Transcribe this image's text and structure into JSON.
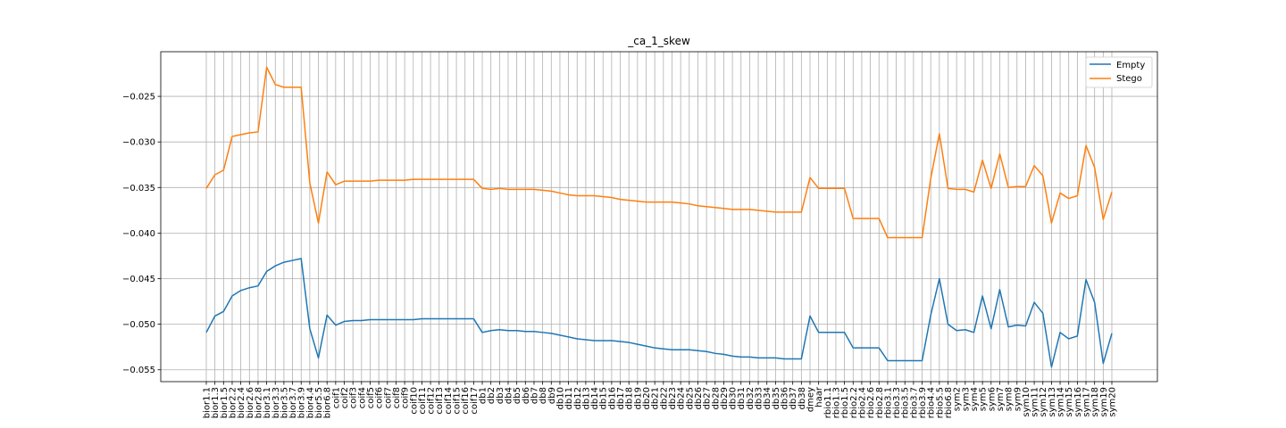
{
  "chart_data": {
    "type": "line",
    "title": "_ca_1_skew",
    "xlabel": "",
    "ylabel": "",
    "ylim": [
      -0.0563,
      -0.0201
    ],
    "grid": true,
    "legend_position": "top-right",
    "yticks": [
      -0.055,
      -0.05,
      -0.045,
      -0.04,
      -0.035,
      -0.03,
      -0.025
    ],
    "ytick_labels": [
      "−0.055",
      "−0.050",
      "−0.045",
      "−0.040",
      "−0.035",
      "−0.030",
      "−0.025"
    ],
    "categories": [
      "bior1.1",
      "bior1.3",
      "bior1.5",
      "bior2.2",
      "bior2.4",
      "bior2.6",
      "bior2.8",
      "bior3.1",
      "bior3.3",
      "bior3.5",
      "bior3.7",
      "bior3.9",
      "bior4.4",
      "bior5.5",
      "bior6.8",
      "coif1",
      "coif2",
      "coif3",
      "coif4",
      "coif5",
      "coif6",
      "coif7",
      "coif8",
      "coif9",
      "coif10",
      "coif11",
      "coif12",
      "coif13",
      "coif14",
      "coif15",
      "coif16",
      "coif17",
      "db1",
      "db2",
      "db3",
      "db4",
      "db5",
      "db6",
      "db7",
      "db8",
      "db9",
      "db10",
      "db11",
      "db12",
      "db13",
      "db14",
      "db15",
      "db16",
      "db17",
      "db18",
      "db19",
      "db20",
      "db21",
      "db22",
      "db23",
      "db24",
      "db25",
      "db26",
      "db27",
      "db28",
      "db29",
      "db30",
      "db31",
      "db32",
      "db33",
      "db34",
      "db35",
      "db36",
      "db37",
      "db38",
      "dmey",
      "haar",
      "rbio1.1",
      "rbio1.3",
      "rbio1.5",
      "rbio2.2",
      "rbio2.4",
      "rbio2.6",
      "rbio2.8",
      "rbio3.1",
      "rbio3.3",
      "rbio3.5",
      "rbio3.7",
      "rbio3.9",
      "rbio4.4",
      "rbio5.5",
      "rbio6.8",
      "sym2",
      "sym3",
      "sym4",
      "sym5",
      "sym6",
      "sym7",
      "sym8",
      "sym9",
      "sym10",
      "sym11",
      "sym12",
      "sym13",
      "sym14",
      "sym15",
      "sym16",
      "sym17",
      "sym18",
      "sym19",
      "sym20"
    ],
    "series": [
      {
        "name": "Empty",
        "color": "#1f77b4",
        "values": [
          -0.0509,
          -0.0491,
          -0.0486,
          -0.0469,
          -0.0463,
          -0.046,
          -0.0458,
          -0.0442,
          -0.0436,
          -0.0432,
          -0.043,
          -0.0428,
          -0.0505,
          -0.0537,
          -0.049,
          -0.0501,
          -0.0497,
          -0.0496,
          -0.0496,
          -0.0495,
          -0.0495,
          -0.0495,
          -0.0495,
          -0.0495,
          -0.0495,
          -0.0494,
          -0.0494,
          -0.0494,
          -0.0494,
          -0.0494,
          -0.0494,
          -0.0494,
          -0.0509,
          -0.0507,
          -0.0506,
          -0.0507,
          -0.0507,
          -0.0508,
          -0.0508,
          -0.0509,
          -0.051,
          -0.0512,
          -0.0514,
          -0.0516,
          -0.0517,
          -0.0518,
          -0.0518,
          -0.0518,
          -0.0519,
          -0.052,
          -0.0522,
          -0.0524,
          -0.0526,
          -0.0527,
          -0.0528,
          -0.0528,
          -0.0528,
          -0.0529,
          -0.053,
          -0.0532,
          -0.0533,
          -0.0535,
          -0.0536,
          -0.0536,
          -0.0537,
          -0.0537,
          -0.0537,
          -0.0538,
          -0.0538,
          -0.0538,
          -0.0491,
          -0.0509,
          -0.0509,
          -0.0509,
          -0.0509,
          -0.0526,
          -0.0526,
          -0.0526,
          -0.0526,
          -0.054,
          -0.054,
          -0.054,
          -0.054,
          -0.054,
          -0.049,
          -0.045,
          -0.05,
          -0.0507,
          -0.0506,
          -0.0509,
          -0.0469,
          -0.0505,
          -0.0462,
          -0.0503,
          -0.0501,
          -0.0502,
          -0.0476,
          -0.0488,
          -0.0547,
          -0.0509,
          -0.0516,
          -0.0513,
          -0.0451,
          -0.0476,
          -0.0543,
          -0.051
        ]
      },
      {
        "name": "Stego",
        "color": "#ff7f0e",
        "values": [
          -0.0351,
          -0.0336,
          -0.0331,
          -0.0294,
          -0.0292,
          -0.029,
          -0.0289,
          -0.0218,
          -0.0237,
          -0.024,
          -0.024,
          -0.024,
          -0.0345,
          -0.0389,
          -0.0333,
          -0.0347,
          -0.0343,
          -0.0343,
          -0.0343,
          -0.0343,
          -0.0342,
          -0.0342,
          -0.0342,
          -0.0342,
          -0.0341,
          -0.0341,
          -0.0341,
          -0.0341,
          -0.0341,
          -0.0341,
          -0.0341,
          -0.0341,
          -0.0351,
          -0.0352,
          -0.0351,
          -0.0352,
          -0.0352,
          -0.0352,
          -0.0352,
          -0.0353,
          -0.0354,
          -0.0356,
          -0.0358,
          -0.0359,
          -0.0359,
          -0.0359,
          -0.036,
          -0.0361,
          -0.0363,
          -0.0364,
          -0.0365,
          -0.0366,
          -0.0366,
          -0.0366,
          -0.0366,
          -0.0367,
          -0.0368,
          -0.037,
          -0.0371,
          -0.0372,
          -0.0373,
          -0.0374,
          -0.0374,
          -0.0374,
          -0.0375,
          -0.0376,
          -0.0377,
          -0.0377,
          -0.0377,
          -0.0377,
          -0.0339,
          -0.0351,
          -0.0351,
          -0.0351,
          -0.0351,
          -0.0384,
          -0.0384,
          -0.0384,
          -0.0384,
          -0.0405,
          -0.0405,
          -0.0405,
          -0.0405,
          -0.0405,
          -0.034,
          -0.0291,
          -0.0351,
          -0.0352,
          -0.0352,
          -0.0355,
          -0.032,
          -0.0351,
          -0.0313,
          -0.035,
          -0.0349,
          -0.0349,
          -0.0326,
          -0.0337,
          -0.0389,
          -0.0356,
          -0.0362,
          -0.0359,
          -0.0304,
          -0.0328,
          -0.0385,
          -0.0355
        ]
      }
    ]
  }
}
